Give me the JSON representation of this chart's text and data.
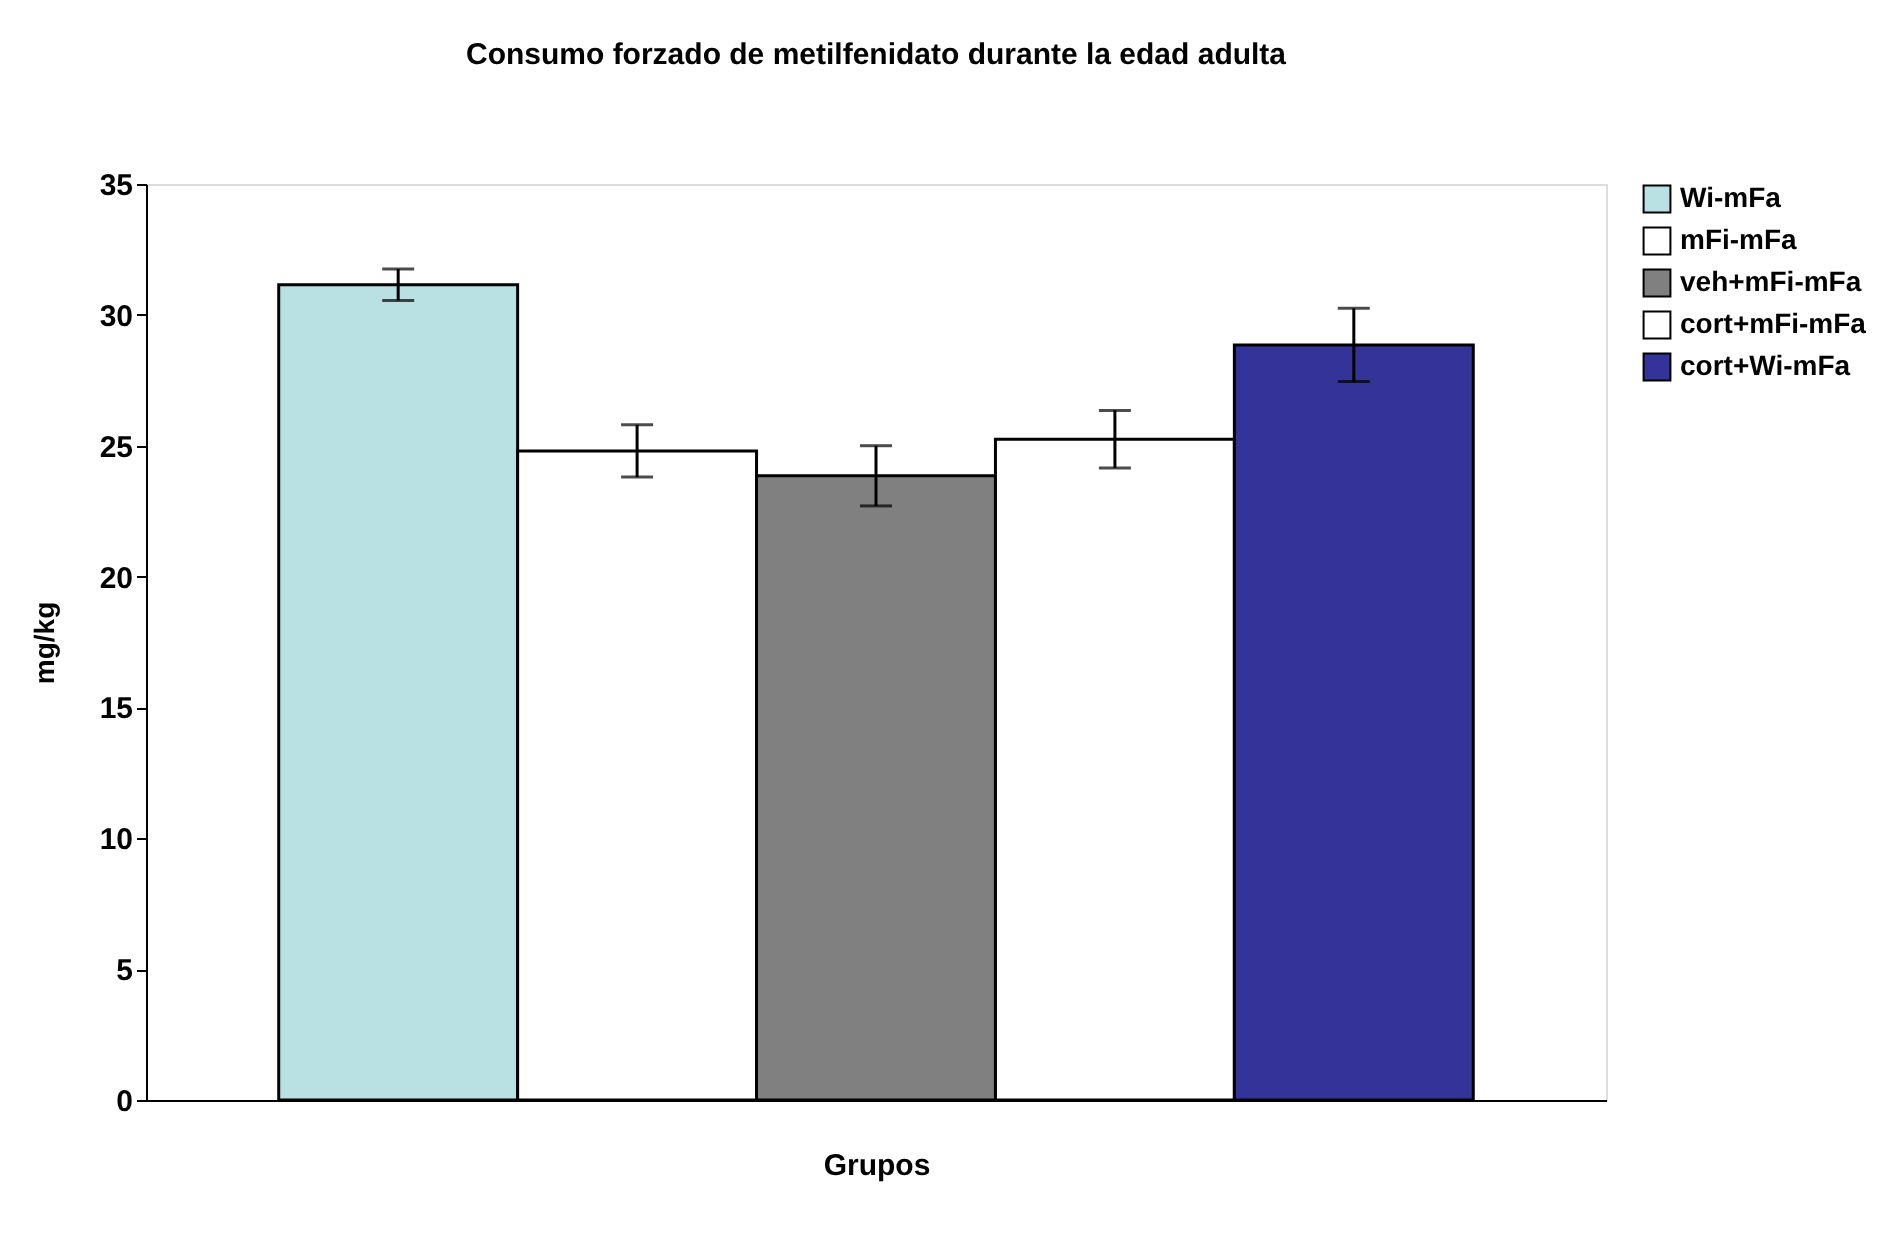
{
  "chart_data": {
    "type": "bar",
    "title": "Consumo forzado de metilfenidato durante la  edad adulta",
    "xlabel": "Grupos",
    "ylabel": "mg/kg",
    "categories": [
      null
    ],
    "ylim": [
      0,
      35
    ],
    "yticks": [
      0,
      5,
      10,
      15,
      20,
      25,
      30,
      35
    ],
    "grid": false,
    "legend": "right",
    "series": [
      {
        "name": "Wi-mFa",
        "color": "#b9e0e3",
        "values": [
          31.15
        ],
        "errors": [
          0.6
        ]
      },
      {
        "name": "mFi-mFa",
        "color": "#ffffff",
        "values": [
          24.8
        ],
        "errors": [
          1.0
        ]
      },
      {
        "name": "veh+mFi-mFa",
        "color": "#808080",
        "values": [
          23.85
        ],
        "errors": [
          1.15
        ]
      },
      {
        "name": "cort+mFi-mFa",
        "color": "#ffffff",
        "values": [
          25.25
        ],
        "errors": [
          1.1
        ]
      },
      {
        "name": "cort+Wi-mFa",
        "color": "#333399",
        "values": [
          28.85
        ],
        "errors": [
          1.4
        ]
      }
    ]
  }
}
